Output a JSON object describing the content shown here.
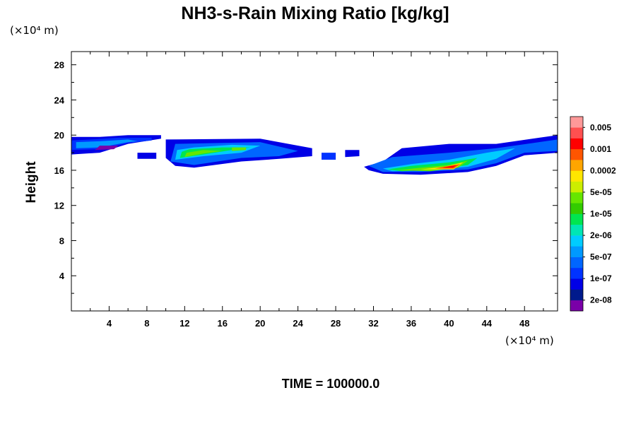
{
  "chart_data": {
    "type": "heatmap",
    "title": "NH3-s-Rain Mixing Ratio [kg/kg]",
    "xlabel": "",
    "ylabel": "Height",
    "x_unit_label": "(×10⁴ m)",
    "y_unit_label": "(×10⁴ m)",
    "xlim": [
      0,
      51.5
    ],
    "ylim": [
      0,
      29.5
    ],
    "x_ticks": [
      4,
      8,
      12,
      16,
      20,
      24,
      28,
      32,
      36,
      40,
      44,
      48
    ],
    "y_ticks": [
      4,
      8,
      12,
      16,
      20,
      24,
      28
    ],
    "grid": false,
    "footer": "TIME = 100000.0",
    "colorbar": {
      "colors": [
        "#7a00a8",
        "#001a8c",
        "#0000e6",
        "#0033ff",
        "#0066ff",
        "#0099ff",
        "#00ccff",
        "#00e6b4",
        "#00e650",
        "#33cc00",
        "#66e600",
        "#ccee00",
        "#ffe600",
        "#ffa500",
        "#ff5500",
        "#ff0000",
        "#ff5050",
        "#ff9999"
      ],
      "labels": [
        "2e-08",
        "1e-07",
        "5e-07",
        "2e-06",
        "1e-05",
        "5e-05",
        "0.0002",
        "0.001",
        "0.005"
      ]
    },
    "regions": [
      {
        "level": 2,
        "points": [
          [
            0,
            17.8
          ],
          [
            3,
            18
          ],
          [
            6,
            19
          ],
          [
            9.5,
            19.6
          ],
          [
            9.5,
            20
          ],
          [
            6,
            20
          ],
          [
            3,
            19.8
          ],
          [
            0,
            19.8
          ]
        ]
      },
      {
        "level": 3,
        "points": [
          [
            0,
            18.3
          ],
          [
            3,
            18.4
          ],
          [
            6,
            19.1
          ],
          [
            8.5,
            19.4
          ],
          [
            8.5,
            19.7
          ],
          [
            5,
            19.7
          ],
          [
            2,
            19.5
          ],
          [
            0,
            19.4
          ]
        ]
      },
      {
        "level": 5,
        "points": [
          [
            0.5,
            18.5
          ],
          [
            3,
            18.6
          ],
          [
            6,
            19.2
          ],
          [
            7,
            19.3
          ],
          [
            6,
            19.5
          ],
          [
            3,
            19.3
          ],
          [
            0.5,
            19.2
          ]
        ]
      },
      {
        "level": 0,
        "points": [
          [
            2.5,
            18.3
          ],
          [
            4.5,
            18.4
          ],
          [
            5,
            18.8
          ],
          [
            3,
            18.8
          ]
        ]
      },
      {
        "level": 2,
        "points": [
          [
            7,
            17.3
          ],
          [
            9,
            17.3
          ],
          [
            9,
            18
          ],
          [
            7,
            18
          ]
        ]
      },
      {
        "level": 2,
        "points": [
          [
            10,
            17.4
          ],
          [
            10,
            19.5
          ],
          [
            20,
            19.6
          ],
          [
            25.5,
            18.5
          ],
          [
            25.5,
            17.6
          ],
          [
            22,
            17.3
          ],
          [
            18,
            17
          ],
          [
            13,
            16.3
          ],
          [
            11,
            16.5
          ]
        ]
      },
      {
        "level": 4,
        "points": [
          [
            10.5,
            17
          ],
          [
            11,
            19
          ],
          [
            20,
            19.2
          ],
          [
            24,
            18.2
          ],
          [
            22,
            17.6
          ],
          [
            18,
            17.4
          ],
          [
            13,
            16.6
          ]
        ]
      },
      {
        "level": 6,
        "points": [
          [
            11,
            17.2
          ],
          [
            14,
            17.6
          ],
          [
            18,
            18
          ],
          [
            20,
            18.8
          ],
          [
            17,
            18.9
          ],
          [
            13,
            18.6
          ],
          [
            11.2,
            18.3
          ]
        ]
      },
      {
        "level": 8,
        "points": [
          [
            11.5,
            17.4
          ],
          [
            14,
            17.8
          ],
          [
            17,
            18.3
          ],
          [
            19,
            18.6
          ],
          [
            16,
            18.6
          ],
          [
            12.5,
            18.4
          ],
          [
            11.7,
            18.1
          ]
        ]
      },
      {
        "level": 10,
        "points": [
          [
            12,
            17.5
          ],
          [
            14,
            17.9
          ],
          [
            16,
            18.2
          ],
          [
            14,
            18.3
          ],
          [
            12.2,
            18
          ]
        ]
      },
      {
        "level": 10,
        "points": [
          [
            17,
            18.2
          ],
          [
            18.5,
            18.3
          ],
          [
            18.5,
            18.6
          ],
          [
            17,
            18.6
          ]
        ]
      },
      {
        "level": 3,
        "points": [
          [
            26.5,
            17.2
          ],
          [
            28,
            17.2
          ],
          [
            28,
            18
          ],
          [
            26.5,
            18
          ]
        ]
      },
      {
        "level": 2,
        "points": [
          [
            29,
            17.5
          ],
          [
            30.5,
            17.6
          ],
          [
            30.5,
            18.3
          ],
          [
            29,
            18.3
          ]
        ]
      },
      {
        "level": 2,
        "points": [
          [
            31,
            16.4
          ],
          [
            33,
            17
          ],
          [
            35,
            18.5
          ],
          [
            40,
            19
          ],
          [
            45,
            19
          ],
          [
            51.5,
            20
          ],
          [
            51.5,
            18
          ],
          [
            48,
            17.7
          ],
          [
            45,
            16.5
          ],
          [
            42,
            15.8
          ],
          [
            37,
            15.5
          ],
          [
            33,
            15.6
          ],
          [
            31.5,
            16
          ]
        ]
      },
      {
        "level": 4,
        "points": [
          [
            31.5,
            16.5
          ],
          [
            34,
            17.5
          ],
          [
            40,
            18
          ],
          [
            45,
            18.5
          ],
          [
            51.5,
            19.5
          ],
          [
            51.5,
            18.2
          ],
          [
            48,
            18
          ],
          [
            45,
            16.8
          ],
          [
            42,
            16.1
          ],
          [
            37,
            15.8
          ],
          [
            33,
            15.8
          ]
        ]
      },
      {
        "level": 6,
        "points": [
          [
            33,
            16.2
          ],
          [
            36,
            16.7
          ],
          [
            40,
            17.2
          ],
          [
            44,
            18
          ],
          [
            47,
            18.5
          ],
          [
            45,
            17.3
          ],
          [
            42,
            16.4
          ],
          [
            38,
            16
          ],
          [
            34,
            15.9
          ]
        ]
      },
      {
        "level": 8,
        "points": [
          [
            33.5,
            16.1
          ],
          [
            36,
            16.5
          ],
          [
            40,
            16.9
          ],
          [
            43,
            17.4
          ],
          [
            42,
            16.6
          ],
          [
            39,
            16.1
          ],
          [
            35,
            15.9
          ]
        ]
      },
      {
        "level": 10,
        "points": [
          [
            34.5,
            16
          ],
          [
            37,
            16.3
          ],
          [
            40,
            16.6
          ],
          [
            42,
            17.1
          ],
          [
            41,
            16.3
          ],
          [
            38,
            15.9
          ]
        ]
      },
      {
        "level": 12,
        "points": [
          [
            37,
            16.1
          ],
          [
            39.5,
            16.4
          ],
          [
            41.5,
            16.9
          ],
          [
            40.5,
            16.1
          ]
        ]
      },
      {
        "level": 14,
        "points": [
          [
            38.5,
            16.2
          ],
          [
            40,
            16.5
          ],
          [
            41.2,
            16.7
          ],
          [
            40.5,
            16.2
          ]
        ]
      },
      {
        "level": 15,
        "points": [
          [
            39.3,
            16.3
          ],
          [
            40.3,
            16.5
          ],
          [
            40.8,
            16.6
          ],
          [
            40.4,
            16.3
          ]
        ]
      }
    ]
  }
}
